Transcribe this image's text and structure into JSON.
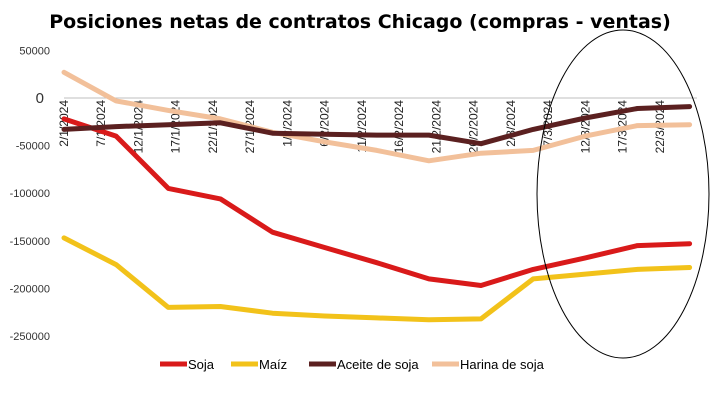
{
  "chart_data": {
    "type": "line",
    "title": "Posiciones netas de contratos Chicago (compras - ventas)",
    "xlabel": "",
    "ylabel": "",
    "ylim": [
      -270000,
      62000
    ],
    "yticks": [
      {
        "value": 50000,
        "label": "50000"
      },
      {
        "value": 0,
        "label": "0"
      },
      {
        "value": -50000,
        "label": "-50000"
      },
      {
        "value": -100000,
        "label": "-100000"
      },
      {
        "value": -150000,
        "label": "-150000"
      },
      {
        "value": -200000,
        "label": "-200000"
      },
      {
        "value": -250000,
        "label": "-250000"
      }
    ],
    "categories": [
      "2/1/2024",
      "7/1/2024",
      "12/1/2024",
      "17/1/2024",
      "22/1/2024",
      "27/1/2024",
      "1/2/2024",
      "6/2/2024",
      "11/2/2024",
      "16/2/2024",
      "21/2/2024",
      "26/2/2024",
      "2/3/2024",
      "7/3/2024",
      "12/3/2024",
      "17/3/2024",
      "22/3/2024"
    ],
    "x": [
      "2024-01-02",
      "2024-01-09",
      "2024-01-16",
      "2024-01-23",
      "2024-01-30",
      "2024-02-06",
      "2024-02-13",
      "2024-02-20",
      "2024-02-27",
      "2024-03-05",
      "2024-03-12",
      "2024-03-19",
      "2024-03-26"
    ],
    "series": [
      {
        "name": "Soja",
        "color": "#d91a1a",
        "values": [
          -22000,
          -40000,
          -95000,
          -106000,
          -141000,
          -157000,
          -173000,
          -190000,
          -197000,
          -180000,
          -168000,
          -155000,
          -153000
        ]
      },
      {
        "name": "Maíz",
        "color": "#f2c21a",
        "values": [
          -147000,
          -175000,
          -220000,
          -219000,
          -226000,
          -229000,
          -231000,
          -233000,
          -232000,
          -190000,
          -185000,
          -180000,
          -178000
        ]
      },
      {
        "name": "Aceite de soja",
        "color": "#5b2020",
        "values": [
          -33000,
          -30000,
          -28000,
          -26000,
          -37000,
          -38000,
          -39000,
          -39000,
          -48000,
          -33000,
          -21000,
          -11000,
          -9000
        ]
      },
      {
        "name": "Harina de soja",
        "color": "#f2c09a",
        "values": [
          27000,
          -3000,
          -13000,
          -22000,
          -36000,
          -46000,
          -55000,
          -66000,
          -58000,
          -55000,
          -40000,
          -29000,
          -28000
        ]
      }
    ],
    "x_range": [
      "2024-01-02",
      "2024-03-27"
    ],
    "grid": false,
    "legend_position": "bottom"
  }
}
